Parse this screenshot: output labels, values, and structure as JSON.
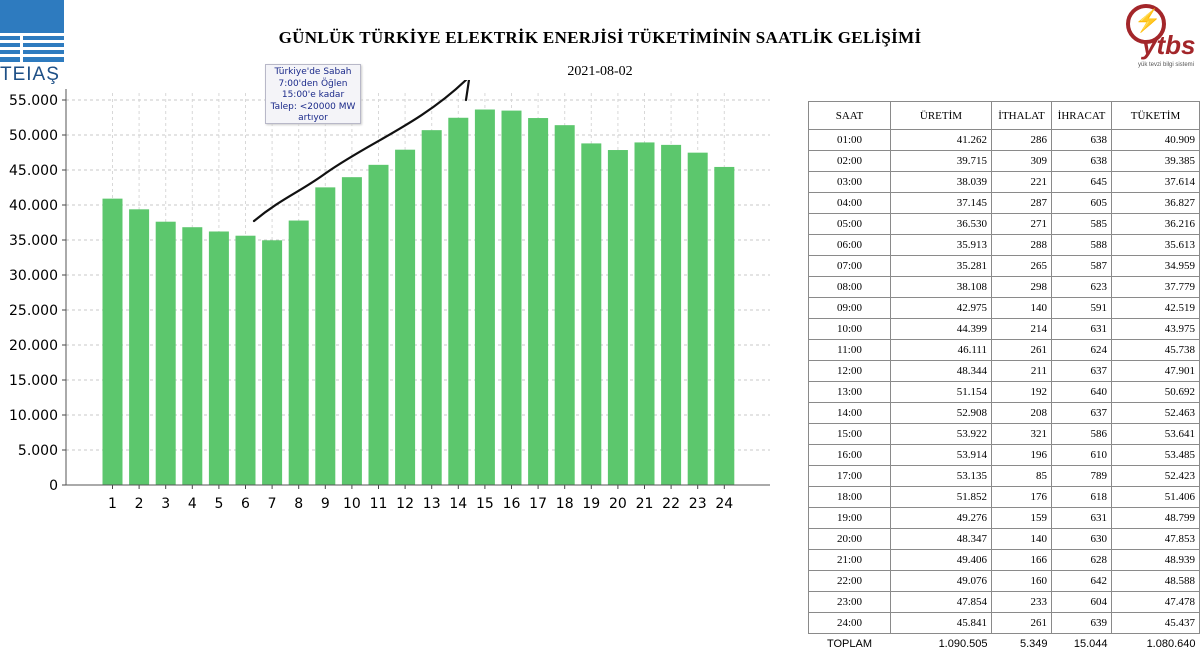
{
  "logos": {
    "teias": "TEIAŞ",
    "ytbs": "ytbs",
    "ytbs_sub": "yük tevzi bilgi sistemi",
    "teias_color": "#2e7bbf",
    "ytbs_color": "#a3262a"
  },
  "header": {
    "title": "GÜNLÜK TÜRKİYE ELEKTRİK ENERJİSİ TÜKETİMİNİN SAATLİK GELİŞİMİ",
    "date": "2021-08-02"
  },
  "annotation": {
    "lines": [
      "Türkiye'de Sabah",
      "7:00'den Öğlen",
      "15:00'e kadar",
      "Talep: <20000 MW",
      "artıyor"
    ]
  },
  "chart_data": {
    "type": "bar",
    "categories": [
      "1",
      "2",
      "3",
      "4",
      "5",
      "6",
      "7",
      "8",
      "9",
      "10",
      "11",
      "12",
      "13",
      "14",
      "15",
      "16",
      "17",
      "18",
      "19",
      "20",
      "21",
      "22",
      "23",
      "24"
    ],
    "values": [
      40909,
      39385,
      37614,
      36827,
      36216,
      35613,
      34959,
      37779,
      42519,
      43975,
      45738,
      47901,
      50692,
      52463,
      53641,
      53485,
      52423,
      51406,
      48799,
      47853,
      48939,
      48588,
      47478,
      45437
    ],
    "yticks": [
      "0",
      "5.000",
      "10.000",
      "15.000",
      "20.000",
      "25.000",
      "30.000",
      "35.000",
      "40.000",
      "45.000",
      "50.000",
      "55.000"
    ],
    "ytick_values": [
      0,
      5000,
      10000,
      15000,
      20000,
      25000,
      30000,
      35000,
      40000,
      45000,
      50000,
      55000
    ],
    "ylim": [
      0,
      56000
    ],
    "grid": true,
    "bar_color": "#5cc76d",
    "title": "GÜNLÜK TÜRKİYE ELEKTRİK ENERJİSİ TÜKETİMİNİN SAATLİK GELİŞİMİ",
    "xlabel": "",
    "ylabel": ""
  },
  "table": {
    "headers": [
      "SAAT",
      "ÜRETİM",
      "İTHALAT",
      "İHRACAT",
      "TÜKETİM"
    ],
    "rows": [
      [
        "01:00",
        "41.262",
        "286",
        "638",
        "40.909"
      ],
      [
        "02:00",
        "39.715",
        "309",
        "638",
        "39.385"
      ],
      [
        "03:00",
        "38.039",
        "221",
        "645",
        "37.614"
      ],
      [
        "04:00",
        "37.145",
        "287",
        "605",
        "36.827"
      ],
      [
        "05:00",
        "36.530",
        "271",
        "585",
        "36.216"
      ],
      [
        "06:00",
        "35.913",
        "288",
        "588",
        "35.613"
      ],
      [
        "07:00",
        "35.281",
        "265",
        "587",
        "34.959"
      ],
      [
        "08:00",
        "38.108",
        "298",
        "623",
        "37.779"
      ],
      [
        "09:00",
        "42.975",
        "140",
        "591",
        "42.519"
      ],
      [
        "10:00",
        "44.399",
        "214",
        "631",
        "43.975"
      ],
      [
        "11:00",
        "46.111",
        "261",
        "624",
        "45.738"
      ],
      [
        "12:00",
        "48.344",
        "211",
        "637",
        "47.901"
      ],
      [
        "13:00",
        "51.154",
        "192",
        "640",
        "50.692"
      ],
      [
        "14:00",
        "52.908",
        "208",
        "637",
        "52.463"
      ],
      [
        "15:00",
        "53.922",
        "321",
        "586",
        "53.641"
      ],
      [
        "16:00",
        "53.914",
        "196",
        "610",
        "53.485"
      ],
      [
        "17:00",
        "53.135",
        "85",
        "789",
        "52.423"
      ],
      [
        "18:00",
        "51.852",
        "176",
        "618",
        "51.406"
      ],
      [
        "19:00",
        "49.276",
        "159",
        "631",
        "48.799"
      ],
      [
        "20:00",
        "48.347",
        "140",
        "630",
        "47.853"
      ],
      [
        "21:00",
        "49.406",
        "166",
        "628",
        "48.939"
      ],
      [
        "22:00",
        "49.076",
        "160",
        "642",
        "48.588"
      ],
      [
        "23:00",
        "47.854",
        "233",
        "604",
        "47.478"
      ],
      [
        "24:00",
        "45.841",
        "261",
        "639",
        "45.437"
      ]
    ],
    "totals": [
      "TOPLAM",
      "1.090.505",
      "5.349",
      "15.044",
      "1.080.640"
    ]
  }
}
